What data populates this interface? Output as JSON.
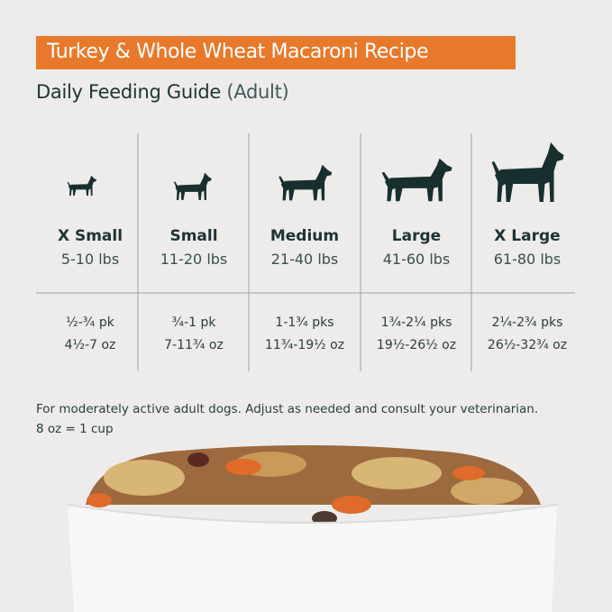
{
  "header": {
    "title": "Turkey & Whole Wheat Macaroni Recipe",
    "subtitle": "Daily Feeding Guide",
    "subtitle_note": "(Adult)"
  },
  "table": {
    "columns": [
      {
        "size": "X Small",
        "weight": "5-10 lbs",
        "packs": "½-¾ pk",
        "ounces": "4½-7 oz"
      },
      {
        "size": "Small",
        "weight": "11-20 lbs",
        "packs": "¾-1 pk",
        "ounces": "7-11¾ oz"
      },
      {
        "size": "Medium",
        "weight": "21-40 lbs",
        "packs": "1-1¾ pks",
        "ounces": "11¾-19½ oz"
      },
      {
        "size": "Large",
        "weight": "41-60 lbs",
        "packs": "1¾-2¼ pks",
        "ounces": "19½-26½ oz"
      },
      {
        "size": "X Large",
        "weight": "61-80 lbs",
        "packs": "2¼-2¾ pks",
        "ounces": "26½-32¾ oz"
      }
    ]
  },
  "footer": {
    "note": "For moderately active adult dogs. Adjust as needed and consult your veterinarian.",
    "conversion": "8 oz = 1 cup"
  }
}
